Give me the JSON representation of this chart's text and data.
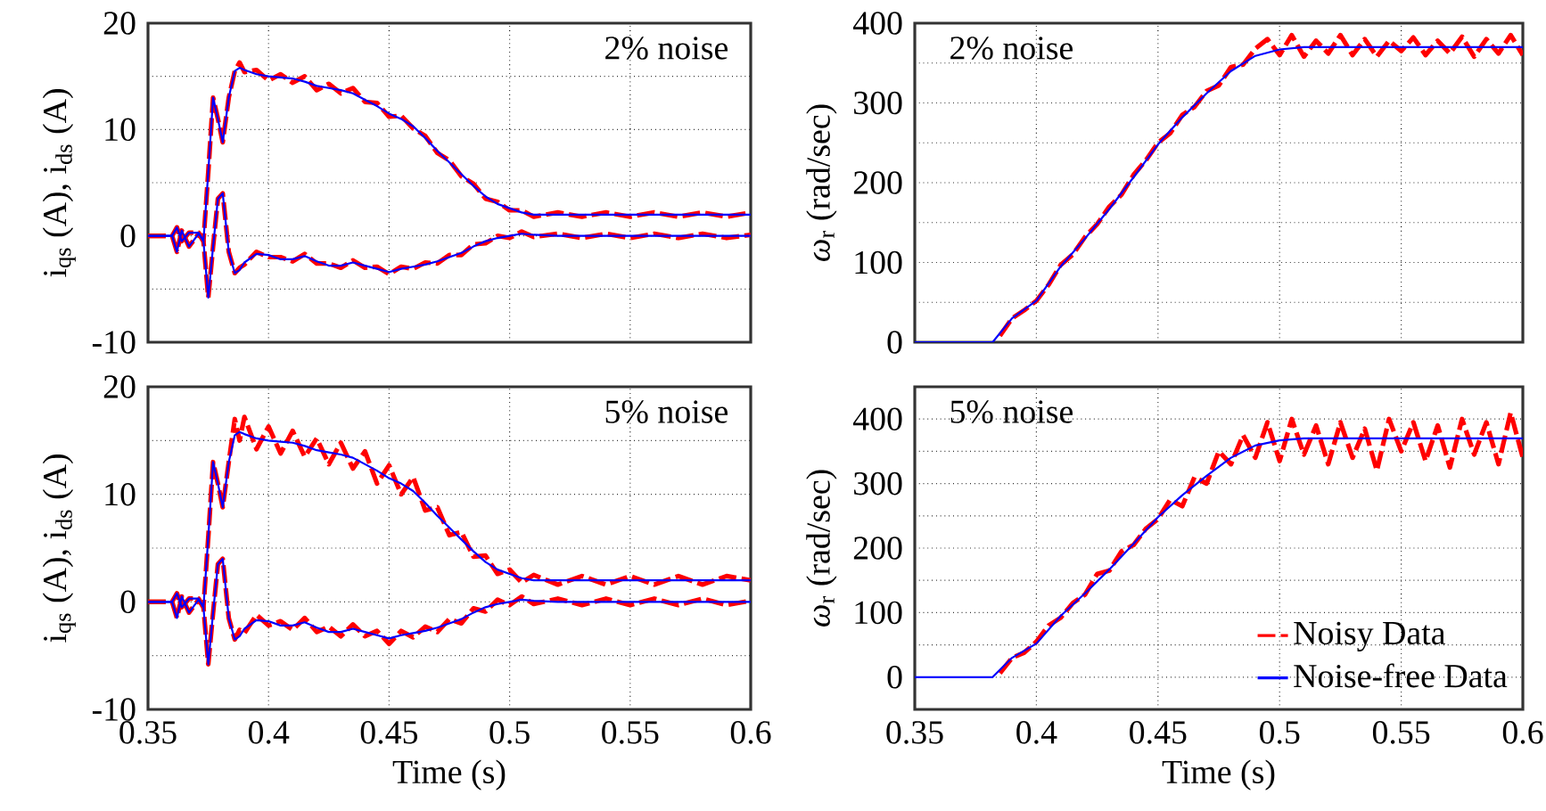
{
  "chart_data": [
    {
      "type": "line",
      "ylabel": "i$_{qs}$ (A), i$_{ds}$ (A)",
      "annotations": [
        "2% noise"
      ],
      "xlim": [
        0.35,
        0.6
      ],
      "ylim": [
        -10,
        20
      ],
      "xticks": [
        0.35,
        0.4,
        0.45,
        0.5,
        0.55,
        0.6
      ],
      "yticks": [
        -10,
        {
          "value": -5,
          "label": null
        },
        0,
        {
          "value": 5,
          "label": null
        },
        10,
        {
          "value": 15,
          "label": null
        },
        20
      ],
      "tick_labels": "y",
      "grid": true,
      "marker": "none",
      "x": [
        0.35,
        0.36,
        0.362,
        0.364,
        0.367,
        0.371,
        0.373,
        0.375,
        0.377,
        0.379,
        0.381,
        0.3835,
        0.386,
        0.388,
        0.39,
        0.395,
        0.4,
        0.405,
        0.41,
        0.415,
        0.42,
        0.425,
        0.43,
        0.435,
        0.44,
        0.445,
        0.45,
        0.455,
        0.46,
        0.465,
        0.47,
        0.475,
        0.48,
        0.485,
        0.49,
        0.495,
        0.5,
        0.505,
        0.51,
        0.52,
        0.53,
        0.54,
        0.55,
        0.56,
        0.57,
        0.58,
        0.59,
        0.6
      ],
      "series": [
        {
          "color": "#ff0000",
          "line_style": "dashed",
          "values": [
            0,
            0,
            0.8,
            -0.5,
            0.3,
            0.3,
            -0.5,
            6,
            13,
            11,
            8.8,
            13,
            15.5,
            16.3,
            15.4,
            15.6,
            14.6,
            15.2,
            14.4,
            15,
            13.7,
            14.3,
            13.4,
            13.9,
            12.6,
            12.5,
            11.2,
            11.3,
            10.1,
            9.4,
            7.8,
            7.1,
            5.6,
            4.9,
            3.5,
            3.2,
            2.4,
            2.4,
            1.8,
            2.2,
            1.8,
            2.2,
            1.8,
            2.2,
            1.8,
            2.2,
            1.8,
            2.2
          ]
        },
        {
          "color": "#ff0000",
          "line_style": "dashed",
          "values": [
            0,
            0,
            -1.5,
            0.5,
            -1,
            0.2,
            -0.5,
            -5.8,
            -1,
            3.5,
            4,
            -1.5,
            -3.5,
            -3,
            -2.7,
            -1.5,
            -2,
            -2,
            -2.4,
            -1.7,
            -2.6,
            -2.6,
            -3,
            -2.3,
            -3,
            -2.9,
            -3.6,
            -2.9,
            -3.1,
            -2.5,
            -2.6,
            -1.8,
            -1.8,
            -0.8,
            -0.7,
            0,
            -0.2,
            0.4,
            -0.1,
            0.2,
            -0.2,
            0.2,
            -0.2,
            0.2,
            -0.2,
            0.2,
            -0.2,
            0.1
          ]
        },
        {
          "color": "#0000ff",
          "line_style": "solid",
          "values": [
            0,
            0,
            0.8,
            -0.5,
            0.3,
            0.3,
            -0.5,
            6,
            13,
            11,
            8.8,
            13,
            15.5,
            15.8,
            15.6,
            15.2,
            15,
            14.9,
            14.8,
            14.5,
            14.1,
            13.9,
            13.7,
            13.4,
            12.8,
            12.2,
            11.5,
            11,
            10.3,
            9.2,
            8,
            6.9,
            5.8,
            4.7,
            3.7,
            3,
            2.6,
            2.2,
            2,
            2,
            2,
            2,
            2,
            2,
            2,
            2,
            2,
            2
          ]
        },
        {
          "color": "#0000ff",
          "line_style": "solid",
          "values": [
            0,
            0,
            -1.5,
            0.5,
            -1,
            0.2,
            -0.5,
            -5.8,
            -1,
            3.5,
            4,
            -1.5,
            -3.5,
            -3.2,
            -2.5,
            -1.7,
            -1.8,
            -2.2,
            -2.2,
            -1.9,
            -2.4,
            -2.8,
            -2.8,
            -2.5,
            -2.8,
            -3.1,
            -3.4,
            -3.1,
            -2.9,
            -2.7,
            -2.4,
            -2,
            -1.6,
            -1,
            -0.5,
            -0.2,
            0,
            0.2,
            0.1,
            0,
            0,
            0,
            0,
            0,
            0,
            0,
            0,
            0
          ]
        }
      ]
    },
    {
      "type": "line",
      "ylabel": "*ω*$_{r}$ (rad/sec)",
      "annotations": [
        "2% noise"
      ],
      "xlim": [
        0.35,
        0.6
      ],
      "ylim": [
        0,
        400
      ],
      "xticks": [
        0.35,
        0.4,
        0.45,
        0.5,
        0.55,
        0.6
      ],
      "yticks": [
        0,
        {
          "value": 50,
          "label": null
        },
        100,
        {
          "value": 150,
          "label": null
        },
        200,
        {
          "value": 250,
          "label": null
        },
        300,
        {
          "value": 350,
          "label": null
        },
        400
      ],
      "tick_labels": "y",
      "grid": true,
      "marker": "none",
      "x": [
        0.35,
        0.382,
        0.39,
        0.4,
        0.41,
        0.42,
        0.43,
        0.44,
        0.45,
        0.46,
        0.47,
        0.48,
        0.49,
        0.5,
        0.51,
        0.6
      ],
      "series": [
        {
          "color": "#ff0000",
          "line_style": "dashed",
          "x": [
            0.385,
            0.39,
            0.395,
            0.4,
            0.405,
            0.41,
            0.415,
            0.42,
            0.425,
            0.43,
            0.435,
            0.44,
            0.445,
            0.45,
            0.455,
            0.46,
            0.465,
            0.47,
            0.475,
            0.48,
            0.485,
            0.49,
            0.495,
            0.5,
            0.505,
            0.51,
            0.515,
            0.52,
            0.525,
            0.53,
            0.535,
            0.54,
            0.545,
            0.55,
            0.555,
            0.56,
            0.565,
            0.57,
            0.575,
            0.58,
            0.585,
            0.59,
            0.595,
            0.6
          ],
          "values": [
            8,
            30,
            40,
            52,
            72,
            97,
            110,
            132,
            148,
            170,
            185,
            210,
            228,
            250,
            262,
            285,
            295,
            315,
            322,
            345,
            348,
            368,
            380,
            360,
            385,
            358,
            378,
            362,
            385,
            360,
            380,
            358,
            378,
            365,
            382,
            360,
            378,
            362,
            383,
            358,
            380,
            362,
            385,
            360
          ]
        },
        {
          "color": "#0000ff",
          "line_style": "solid",
          "values": [
            0,
            0,
            30,
            52,
            95,
            130,
            167,
            207,
            248,
            282,
            312,
            340,
            359,
            367,
            370,
            370
          ]
        }
      ]
    },
    {
      "type": "line",
      "xlabel": "Time (s)",
      "ylabel": "i$_{qs}$ (A), i$_{ds}$ (A)",
      "annotations": [
        "5% noise"
      ],
      "xlim": [
        0.35,
        0.6
      ],
      "ylim": [
        -10,
        20
      ],
      "xticks": [
        0.35,
        0.4,
        0.45,
        0.5,
        0.55,
        0.6
      ],
      "yticks": [
        -10,
        {
          "value": -5,
          "label": null
        },
        0,
        {
          "value": 5,
          "label": null
        },
        10,
        {
          "value": 15,
          "label": null
        },
        20
      ],
      "grid": true,
      "marker": "none",
      "x": [
        0.35,
        0.36,
        0.362,
        0.364,
        0.367,
        0.371,
        0.373,
        0.375,
        0.377,
        0.379,
        0.381,
        0.3835,
        0.386,
        0.388,
        0.39,
        0.395,
        0.4,
        0.405,
        0.41,
        0.415,
        0.42,
        0.425,
        0.43,
        0.435,
        0.44,
        0.445,
        0.45,
        0.455,
        0.46,
        0.465,
        0.47,
        0.475,
        0.48,
        0.485,
        0.49,
        0.495,
        0.5,
        0.505,
        0.51,
        0.52,
        0.53,
        0.54,
        0.55,
        0.56,
        0.57,
        0.58,
        0.59,
        0.6
      ],
      "series": [
        {
          "color": "#ff0000",
          "line_style": "dashed",
          "values": [
            0,
            0,
            0.8,
            -0.5,
            0.3,
            0.3,
            -0.5,
            6,
            13,
            11,
            8.8,
            13,
            17,
            15,
            17.2,
            14.2,
            16.3,
            13.8,
            15.9,
            13.5,
            15.2,
            12.8,
            14.8,
            12.4,
            14,
            11,
            12.7,
            10,
            11.6,
            8.5,
            8.8,
            6.2,
            6.5,
            4.2,
            4.3,
            2.6,
            3,
            1.8,
            2.5,
            1.6,
            2.4,
            1.6,
            2.4,
            1.6,
            2.4,
            1.6,
            2.4,
            2
          ]
        },
        {
          "color": "#ff0000",
          "line_style": "dashed",
          "values": [
            0,
            0,
            -1.5,
            0.5,
            -1,
            0.2,
            -0.5,
            -5.8,
            -1,
            3.5,
            4,
            -1.5,
            -3.5,
            -2.6,
            -2.9,
            -1.2,
            -2.2,
            -1.8,
            -2.6,
            -1.5,
            -2.8,
            -2.3,
            -3.2,
            -2.1,
            -3.2,
            -2.7,
            -3.9,
            -2.7,
            -3.3,
            -2.3,
            -2.8,
            -1.6,
            -2,
            -0.6,
            -0.9,
            0.2,
            -0.3,
            0.5,
            -0.2,
            0.3,
            -0.3,
            0.3,
            -0.3,
            0.3,
            -0.3,
            0.3,
            -0.3,
            0.1
          ]
        },
        {
          "color": "#0000ff",
          "line_style": "solid",
          "values": [
            0,
            0,
            0.8,
            -0.5,
            0.3,
            0.3,
            -0.5,
            6,
            13,
            11,
            8.8,
            13,
            15.5,
            15.8,
            15.6,
            15.2,
            15,
            14.9,
            14.8,
            14.5,
            14.1,
            13.9,
            13.7,
            13.4,
            12.8,
            12.2,
            11.5,
            11,
            10.3,
            9.2,
            8,
            6.9,
            5.8,
            4.7,
            3.7,
            3,
            2.6,
            2.2,
            2,
            2,
            2,
            2,
            2,
            2,
            2,
            2,
            2,
            2
          ]
        },
        {
          "color": "#0000ff",
          "line_style": "solid",
          "values": [
            0,
            0,
            -1.5,
            0.5,
            -1,
            0.2,
            -0.5,
            -5.8,
            -1,
            3.5,
            4,
            -1.5,
            -3.5,
            -3.2,
            -2.5,
            -1.7,
            -1.8,
            -2.2,
            -2.2,
            -1.9,
            -2.4,
            -2.8,
            -2.8,
            -2.5,
            -2.8,
            -3.1,
            -3.4,
            -3.1,
            -2.9,
            -2.7,
            -2.4,
            -2,
            -1.6,
            -1,
            -0.5,
            -0.2,
            0,
            0.2,
            0.1,
            0,
            0,
            0,
            0,
            0,
            0,
            0,
            0,
            0
          ]
        }
      ]
    },
    {
      "type": "line",
      "xlabel": "Time (s)",
      "ylabel": "*ω*$_{r}$ (rad/sec)",
      "annotations": [
        "5% noise"
      ],
      "xlim": [
        0.35,
        0.6
      ],
      "ylim": [
        -50,
        450
      ],
      "xticks": [
        0.35,
        0.4,
        0.45,
        0.5,
        0.55,
        0.6
      ],
      "yticks": [
        0,
        {
          "value": 50,
          "label": null
        },
        100,
        {
          "value": 150,
          "label": null
        },
        200,
        {
          "value": 250,
          "label": null
        },
        300,
        {
          "value": 350,
          "label": null
        },
        400
      ],
      "grid": true,
      "marker": "none",
      "legend": "bottom right",
      "x": [
        0.35,
        0.382,
        0.39,
        0.4,
        0.41,
        0.42,
        0.43,
        0.44,
        0.45,
        0.46,
        0.47,
        0.48,
        0.49,
        0.5,
        0.51,
        0.6
      ],
      "series": [
        {
          "name": "Noisy Data",
          "color": "#ff0000",
          "line_style": "dashed",
          "x": [
            0.385,
            0.39,
            0.395,
            0.4,
            0.405,
            0.41,
            0.415,
            0.42,
            0.425,
            0.43,
            0.435,
            0.44,
            0.445,
            0.45,
            0.455,
            0.46,
            0.465,
            0.47,
            0.475,
            0.48,
            0.485,
            0.49,
            0.495,
            0.5,
            0.505,
            0.51,
            0.515,
            0.52,
            0.525,
            0.53,
            0.535,
            0.54,
            0.545,
            0.55,
            0.555,
            0.56,
            0.565,
            0.57,
            0.575,
            0.58,
            0.585,
            0.59,
            0.595,
            0.6
          ],
          "values": [
            6,
            30,
            38,
            55,
            80,
            92,
            115,
            128,
            160,
            165,
            195,
            205,
            230,
            245,
            275,
            265,
            310,
            300,
            350,
            330,
            375,
            340,
            395,
            335,
            400,
            345,
            390,
            330,
            395,
            340,
            385,
            320,
            400,
            350,
            395,
            335,
            390,
            325,
            400,
            345,
            395,
            330,
            410,
            340
          ]
        },
        {
          "name": "Noise-free Data",
          "color": "#0000ff",
          "line_style": "solid",
          "values": [
            0,
            0,
            30,
            52,
            95,
            130,
            167,
            207,
            248,
            282,
            312,
            340,
            359,
            367,
            370,
            370
          ]
        }
      ]
    }
  ]
}
